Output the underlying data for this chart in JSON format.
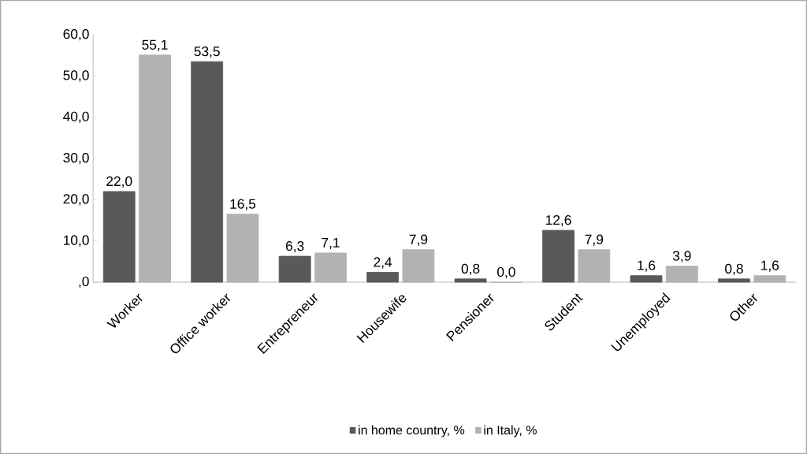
{
  "chart_data": {
    "type": "bar",
    "categories": [
      "Worker",
      "Office worker",
      "Entrepreneur",
      "Housewife",
      "Pensioner",
      "Student",
      "Unemployed",
      "Other"
    ],
    "series": [
      {
        "name": "in home country, %",
        "color": "#595959",
        "values": [
          22.0,
          53.5,
          6.3,
          2.4,
          0.8,
          12.6,
          1.6,
          0.8
        ],
        "value_labels": [
          "22,0",
          "53,5",
          "6,3",
          "2,4",
          "0,8",
          "12,6",
          "1,6",
          "0,8"
        ]
      },
      {
        "name": "in Italy, %",
        "color": "#b2b2b2",
        "values": [
          55.1,
          16.5,
          7.1,
          7.9,
          0.0,
          7.9,
          3.9,
          1.6
        ],
        "value_labels": [
          "55,1",
          "16,5",
          "7,1",
          "7,9",
          "0,0",
          "7,9",
          "3,9",
          "1,6"
        ]
      }
    ],
    "ylim": [
      0,
      60
    ],
    "yticks": [
      {
        "value": 0,
        "label": ",0"
      },
      {
        "value": 10,
        "label": "10,0"
      },
      {
        "value": 20,
        "label": "20,0"
      },
      {
        "value": 30,
        "label": "30,0"
      },
      {
        "value": 40,
        "label": "40,0"
      },
      {
        "value": 50,
        "label": "50,0"
      },
      {
        "value": 60,
        "label": "60,0"
      }
    ],
    "legend": "bottom"
  }
}
